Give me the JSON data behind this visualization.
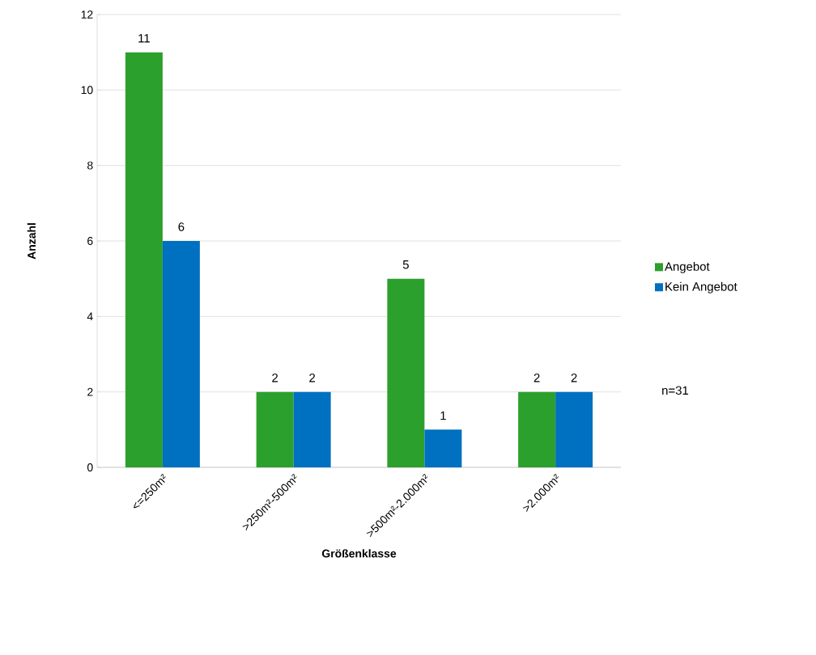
{
  "chart_data": {
    "type": "bar",
    "xlabel": "Größenklasse",
    "ylabel": "Anzahl",
    "categories": [
      "<=250m²",
      ">250m²-500m²",
      ">500m²-2.000m²",
      ">2.000m²"
    ],
    "series": [
      {
        "name": "Angebot",
        "color": "#2ca02c",
        "values": [
          11,
          2,
          5,
          2
        ]
      },
      {
        "name": "Kein Angebot",
        "color": "#0070c0",
        "values": [
          6,
          2,
          1,
          2
        ]
      }
    ],
    "ylim": [
      0,
      12
    ],
    "yticks": [
      0,
      2,
      4,
      6,
      8,
      10,
      12
    ],
    "grid": "y",
    "legend": "right",
    "data_labels": true,
    "annotations": [
      "n=31"
    ]
  }
}
